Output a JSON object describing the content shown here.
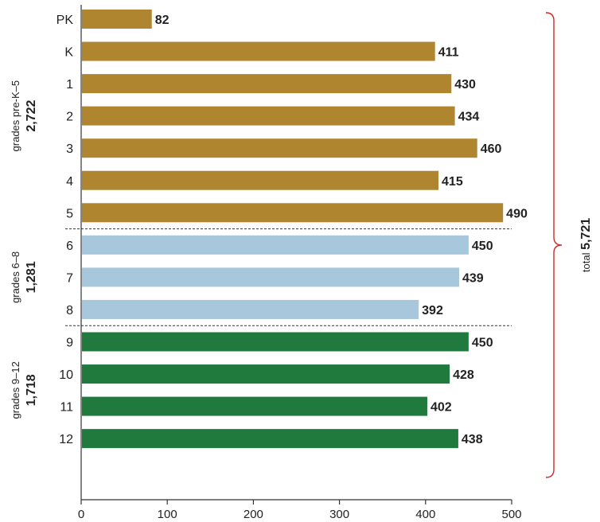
{
  "chart_data": {
    "type": "bar",
    "orientation": "horizontal",
    "categories": [
      "PK",
      "K",
      "1",
      "2",
      "3",
      "4",
      "5",
      "6",
      "7",
      "8",
      "9",
      "10",
      "11",
      "12"
    ],
    "values": [
      82,
      411,
      430,
      434,
      460,
      415,
      490,
      450,
      439,
      392,
      450,
      428,
      402,
      438
    ],
    "value_labels": [
      "82",
      "411",
      "430",
      "434",
      "460",
      "415",
      "490",
      "450",
      "439",
      "392",
      "450",
      "428",
      "402",
      "438"
    ],
    "xlim": [
      0,
      500
    ],
    "x_ticks": [
      0,
      100,
      200,
      300,
      400,
      500
    ],
    "x_tick_labels": [
      "0",
      "100",
      "200",
      "300",
      "400",
      "500"
    ],
    "grid": false,
    "groups": [
      {
        "name": "grades pre-K–5",
        "total": "2,722",
        "color": "#b08530",
        "start": 0,
        "end": 6
      },
      {
        "name": "grades 6–8",
        "total": "1,281",
        "color": "#a7c8dc",
        "start": 7,
        "end": 9
      },
      {
        "name": "grades 9–12",
        "total": "1,718",
        "color": "#217a3d",
        "start": 10,
        "end": 13
      }
    ],
    "total": {
      "name": "total",
      "value": "5,721"
    },
    "colors": {
      "brace": "#d12a2a",
      "axis": "#333333",
      "divider": "#333333"
    }
  }
}
